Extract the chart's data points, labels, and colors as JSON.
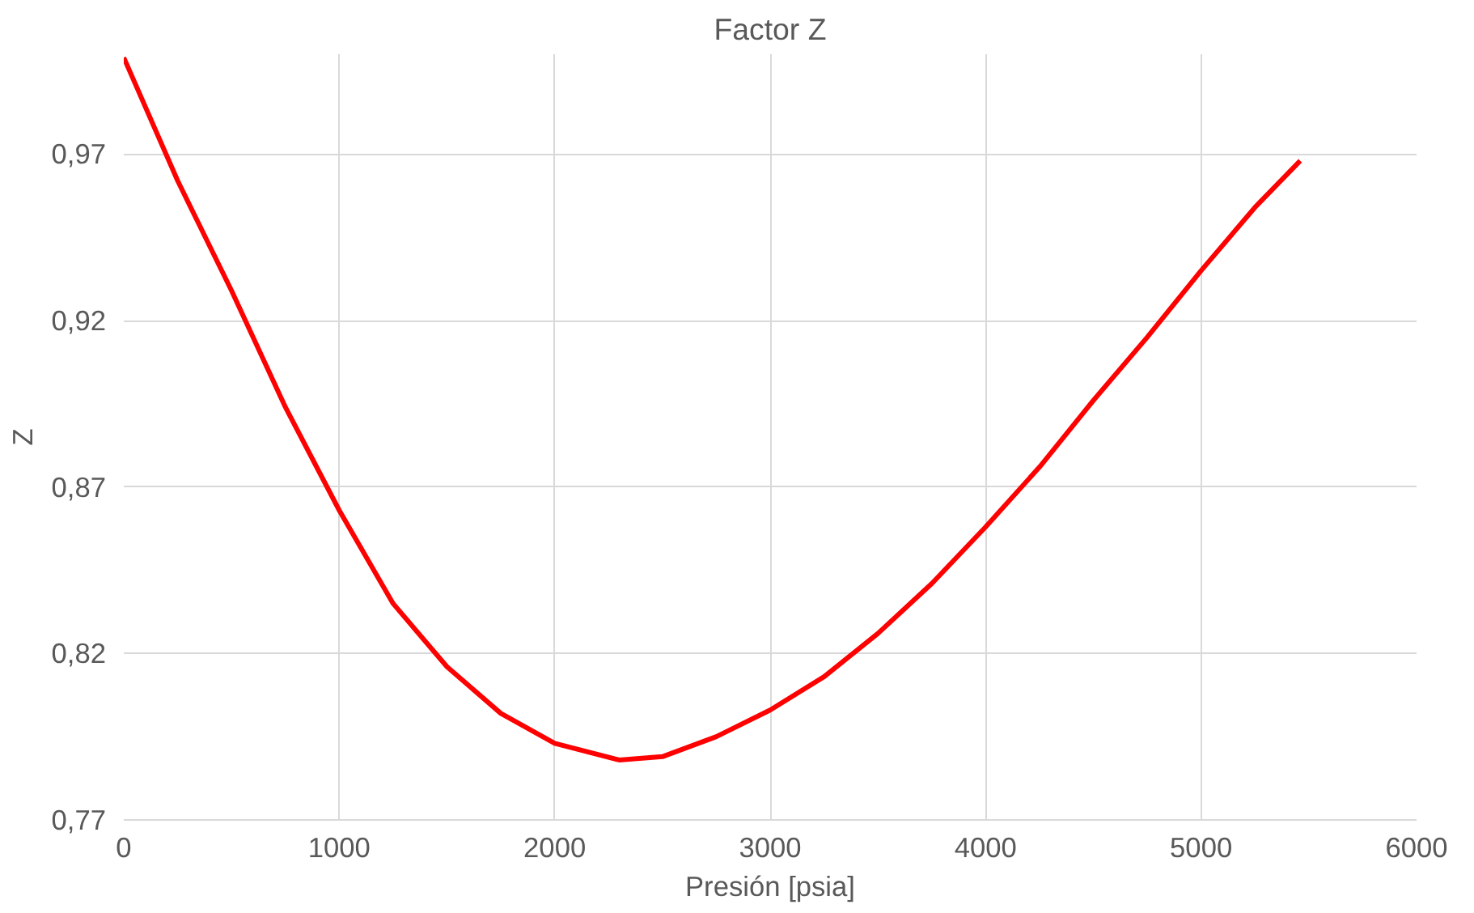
{
  "chart_data": {
    "type": "line",
    "title": "Factor Z",
    "xlabel": "Presión [psia]",
    "ylabel": "Z",
    "x": [
      0,
      250,
      500,
      750,
      1000,
      1250,
      1500,
      1750,
      2000,
      2300,
      2500,
      2750,
      3000,
      3250,
      3500,
      3750,
      4000,
      4250,
      4500,
      4750,
      5000,
      5250,
      5460
    ],
    "series": [
      {
        "color": "#ff0000",
        "values": [
          0.999,
          0.962,
          0.929,
          0.894,
          0.863,
          0.835,
          0.816,
          0.802,
          0.793,
          0.788,
          0.789,
          0.795,
          0.803,
          0.813,
          0.826,
          0.841,
          0.858,
          0.876,
          0.896,
          0.915,
          0.935,
          0.954,
          0.968
        ]
      }
    ],
    "xlim": [
      0,
      6000
    ],
    "xticks": [
      0,
      1000,
      2000,
      3000,
      4000,
      5000,
      6000
    ],
    "ylim": [
      0.77,
      1.0
    ],
    "yticks": [
      {
        "value": 0.77,
        "label": "0,77"
      },
      {
        "value": 0.82,
        "label": "0,82"
      },
      {
        "value": 0.87,
        "label": "0,87"
      },
      {
        "value": 0.92,
        "label": "0,92"
      },
      {
        "value": 0.97,
        "label": "0,97"
      }
    ],
    "grid": true,
    "marker": "none",
    "line_style": "solid"
  }
}
